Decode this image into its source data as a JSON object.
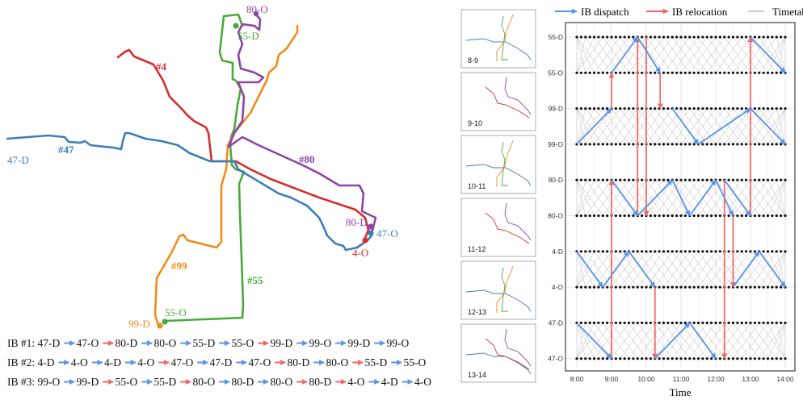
{
  "map": {
    "colors": {
      "r4": "#d42d2d",
      "r47": "#3b7fb9",
      "r55": "#4ba83a",
      "r80": "#8e44a5",
      "r99": "#ef8c1b"
    },
    "route_labels": {
      "r4": "#4",
      "r47": "#47",
      "r55": "#55",
      "r80": "#80",
      "r99": "#99"
    },
    "stop_labels": {
      "s80O": "80-O",
      "s55D": "55-D",
      "s47D": "47-D",
      "s80D": "80-D",
      "s47O": "47-O",
      "s4O": "4-O",
      "s99D": "99-D",
      "s55O": "55-O"
    }
  },
  "ib_schedule": [
    {
      "prefix": "IB #1: ",
      "stops": [
        "47-D",
        "47-O",
        "80-D",
        "80-O",
        "55-D",
        "55-O",
        "99-D",
        "99-O",
        "99-D",
        "99-O"
      ],
      "moves": [
        "d",
        "r",
        "d",
        "d",
        "d",
        "r",
        "d",
        "d",
        "d"
      ]
    },
    {
      "prefix": "IB #2: ",
      "stops": [
        "4-D",
        "4-O",
        "4-D",
        "4-O",
        "47-O",
        "47-D",
        "47-O",
        "80-D",
        "80-O",
        "55-D",
        "55-O"
      ],
      "moves": [
        "d",
        "d",
        "d",
        "r",
        "d",
        "d",
        "r",
        "d",
        "r",
        "d"
      ]
    },
    {
      "prefix": "IB #3: ",
      "stops": [
        "99-O",
        "99-D",
        "55-O",
        "55-D",
        "80-O",
        "80-D",
        "80-O",
        "80-D",
        "4-O",
        "4-D",
        "4-O"
      ],
      "moves": [
        "d",
        "r",
        "d",
        "r",
        "d",
        "d",
        "r",
        "r",
        "d",
        "d"
      ]
    }
  ],
  "arrow_colors": {
    "dispatch": "#5b95e8",
    "relocation": "#ee6b64"
  },
  "thumbnails": [
    "8-9",
    "9-10",
    "10-11",
    "11-12",
    "12-13",
    "13-14"
  ],
  "chart_data": {
    "type": "time-space diagram",
    "legend": {
      "dispatch": "IB dispatch",
      "relocation": "IB relocation",
      "timetabled": "Timetabled trips"
    },
    "y_categories": [
      "55-D",
      "55-O",
      "99-D",
      "99-O",
      "80-D",
      "80-O",
      "4-D",
      "4-O",
      "47-D",
      "47-O"
    ],
    "x_ticks": [
      "8:00",
      "9:00",
      "10:00",
      "11:00",
      "12:00",
      "13:00",
      "14:00"
    ],
    "xlabel": "Time",
    "xlim": [
      8.0,
      14.0
    ],
    "dispatch_segments": [
      {
        "t0": 8.0,
        "s0": "99-O",
        "t1": 9.0,
        "s1": "99-D"
      },
      {
        "t0": 9.0,
        "s0": "55-O",
        "t1": 9.75,
        "s1": "55-D"
      },
      {
        "t0": 9.75,
        "s0": "55-D",
        "t1": 10.4,
        "s1": "55-O"
      },
      {
        "t0": 10.75,
        "s0": "99-D",
        "t1": 11.5,
        "s1": "99-O"
      },
      {
        "t0": 11.5,
        "s0": "99-O",
        "t1": 13.0,
        "s1": "99-D"
      },
      {
        "t0": 13.0,
        "s0": "99-D",
        "t1": 14.0,
        "s1": "99-O"
      },
      {
        "t0": 13.0,
        "s0": "55-D",
        "t1": 14.0,
        "s1": "55-O"
      },
      {
        "t0": 9.0,
        "s0": "80-D",
        "t1": 9.75,
        "s1": "80-O"
      },
      {
        "t0": 9.75,
        "s0": "80-O",
        "t1": 10.75,
        "s1": "80-D"
      },
      {
        "t0": 10.75,
        "s0": "80-D",
        "t1": 11.25,
        "s1": "80-O"
      },
      {
        "t0": 11.25,
        "s0": "80-O",
        "t1": 12.0,
        "s1": "80-D"
      },
      {
        "t0": 12.0,
        "s0": "80-D",
        "t1": 12.5,
        "s1": "80-O"
      },
      {
        "t0": 12.25,
        "s0": "80-D",
        "t1": 13.0,
        "s1": "80-O"
      },
      {
        "t0": 8.0,
        "s0": "4-D",
        "t1": 8.75,
        "s1": "4-O"
      },
      {
        "t0": 8.75,
        "s0": "4-O",
        "t1": 9.5,
        "s1": "4-D"
      },
      {
        "t0": 9.5,
        "s0": "4-D",
        "t1": 10.25,
        "s1": "4-O"
      },
      {
        "t0": 12.5,
        "s0": "4-O",
        "t1": 13.25,
        "s1": "4-D"
      },
      {
        "t0": 13.25,
        "s0": "4-D",
        "t1": 14.0,
        "s1": "4-O"
      },
      {
        "t0": 8.0,
        "s0": "47-D",
        "t1": 9.0,
        "s1": "47-O"
      },
      {
        "t0": 10.25,
        "s0": "47-O",
        "t1": 11.25,
        "s1": "47-D"
      },
      {
        "t0": 11.25,
        "s0": "47-D",
        "t1": 12.0,
        "s1": "47-O"
      }
    ],
    "relocation_segments": [
      {
        "t0": 9.0,
        "s0": "47-O",
        "t1": 9.0,
        "s1": "80-D"
      },
      {
        "t0": 9.0,
        "s0": "99-D",
        "t1": 9.0,
        "s1": "55-O"
      },
      {
        "t0": 9.75,
        "s0": "80-O",
        "t1": 9.75,
        "s1": "55-D"
      },
      {
        "t0": 10.0,
        "s0": "55-D",
        "t1": 10.0,
        "s1": "80-O"
      },
      {
        "t0": 10.4,
        "s0": "55-O",
        "t1": 10.4,
        "s1": "99-D"
      },
      {
        "t0": 10.25,
        "s0": "4-O",
        "t1": 10.25,
        "s1": "47-O"
      },
      {
        "t0": 12.25,
        "s0": "80-D",
        "t1": 12.25,
        "s1": "47-O"
      },
      {
        "t0": 12.5,
        "s0": "80-O",
        "t1": 12.5,
        "s1": "4-O"
      },
      {
        "t0": 13.0,
        "s0": "80-O",
        "t1": 13.0,
        "s1": "55-D"
      }
    ]
  }
}
